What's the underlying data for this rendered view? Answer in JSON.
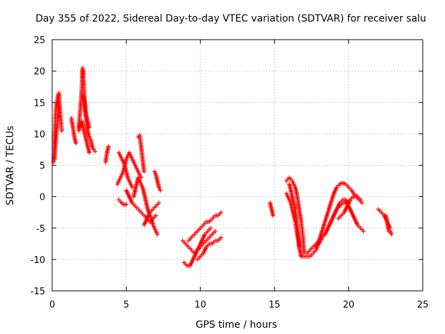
{
  "chart_data": {
    "type": "scatter",
    "title": "Day 355 of 2022, Sidereal Day-to-day VTEC variation (SDTVAR) for receiver salu",
    "xlabel": "GPS time / hours",
    "ylabel": "SDTVAR / TECUs",
    "xlim": [
      0,
      25
    ],
    "ylim": [
      -15,
      25
    ],
    "xticks": [
      0,
      5,
      10,
      15,
      20,
      25
    ],
    "yticks": [
      -15,
      -10,
      -5,
      0,
      5,
      10,
      15,
      20,
      25
    ],
    "grid": true,
    "marker": "+",
    "series": [
      {
        "name": "SDTVAR",
        "color": "#ff0000",
        "segments": [
          {
            "x": [
              0.1,
              0.25,
              0.35,
              0.45,
              0.55,
              0.65
            ],
            "y": [
              5.5,
              14,
              15.5,
              16.5,
              13,
              10.5
            ]
          },
          {
            "x": [
              0.15,
              0.25,
              0.35,
              0.45
            ],
            "y": [
              6,
              9,
              12,
              14.5
            ]
          },
          {
            "x": [
              1.3,
              1.4,
              1.5,
              1.6
            ],
            "y": [
              12.5,
              11,
              9.5,
              8.5
            ]
          },
          {
            "x": [
              1.8,
              1.9,
              2.0,
              2.05,
              2.1,
              2.15,
              2.2,
              2.3,
              2.4,
              2.5,
              2.6,
              2.7,
              2.8,
              2.9
            ],
            "y": [
              11,
              14,
              17,
              20.5,
              20,
              17,
              14,
              12,
              10.5,
              9.5,
              9,
              8,
              7.5,
              7.2
            ]
          },
          {
            "x": [
              1.8,
              1.9,
              2.0,
              2.1,
              2.2,
              2.3,
              2.4,
              2.5
            ],
            "y": [
              10.5,
              11.5,
              12,
              11,
              10,
              9,
              8,
              7
            ]
          },
          {
            "x": [
              2.1,
              2.2,
              2.3,
              2.4,
              2.5
            ],
            "y": [
              16,
              15,
              13,
              12,
              11
            ]
          },
          {
            "x": [
              3.6,
              3.7,
              3.8
            ],
            "y": [
              5.5,
              7,
              8
            ]
          },
          {
            "x": [
              4.4,
              4.5,
              4.6,
              4.7,
              4.8,
              4.9,
              5.0,
              5.1,
              5.2,
              5.3,
              5.4,
              5.5,
              5.6,
              5.7,
              5.8,
              5.9,
              6.0
            ],
            "y": [
              2,
              2.5,
              3,
              3.5,
              4,
              5,
              6,
              6.5,
              7,
              6.5,
              6,
              5.5,
              5,
              4.5,
              4,
              3.5,
              3
            ]
          },
          {
            "x": [
              4.5,
              4.6,
              4.7,
              4.8,
              4.9,
              5.0,
              5.1,
              5.2,
              5.3,
              5.4
            ],
            "y": [
              7,
              6.5,
              6,
              5.5,
              5,
              4,
              3,
              2.5,
              2,
              1.5
            ]
          },
          {
            "x": [
              4.5,
              4.6,
              4.7,
              4.8,
              4.9,
              5.0
            ],
            "y": [
              -0.5,
              -0.8,
              -1,
              -1.2,
              -1.3,
              -1.2
            ]
          },
          {
            "x": [
              5.0,
              5.2,
              5.4,
              5.6,
              5.8,
              6.0,
              6.2,
              6.4,
              6.6,
              6.8,
              7.0
            ],
            "y": [
              1,
              0,
              -1,
              -1.5,
              -2,
              -2.5,
              -3,
              -3.5,
              -4,
              -3.5,
              -3
            ]
          },
          {
            "x": [
              5.5,
              5.6,
              5.7,
              5.8,
              5.9,
              6.0,
              6.1,
              6.2,
              6.3,
              6.4,
              6.5,
              6.6,
              6.7,
              6.8,
              6.9,
              7.0,
              7.1
            ],
            "y": [
              0,
              1,
              2,
              3,
              2.5,
              2,
              1.5,
              0.5,
              -0.5,
              -1.5,
              -2.5,
              -3,
              -3.5,
              -4.5,
              -5,
              -5.5,
              -6
            ]
          },
          {
            "x": [
              5.8,
              5.9,
              6.0,
              6.1,
              6.2
            ],
            "y": [
              9.5,
              9.8,
              8,
              6,
              4
            ]
          },
          {
            "x": [
              6.2,
              6.4,
              6.6,
              6.8,
              7.0,
              7.2
            ],
            "y": [
              -4.5,
              -3.5,
              -2.5,
              -2,
              -1.5,
              -1
            ]
          },
          {
            "x": [
              6.9,
              7.0,
              7.1,
              7.2,
              7.3
            ],
            "y": [
              4,
              3.5,
              2.5,
              1.5,
              1
            ]
          },
          {
            "x": [
              8.8,
              9.0,
              9.2,
              9.4,
              9.6,
              9.8,
              10.0,
              10.2,
              10.4,
              10.6,
              10.8,
              11.0
            ],
            "y": [
              -7,
              -7.5,
              -8,
              -8.5,
              -9,
              -8.5,
              -8,
              -7.5,
              -7,
              -6.5,
              -6,
              -5.5
            ]
          },
          {
            "x": [
              8.9,
              9.1,
              9.3,
              9.5,
              9.7,
              9.9,
              10.1,
              10.3,
              10.5,
              10.7
            ],
            "y": [
              -10.5,
              -11,
              -11,
              -10,
              -9,
              -8,
              -7,
              -6,
              -5.5,
              -5
            ]
          },
          {
            "x": [
              9.2,
              9.4,
              9.6,
              9.8,
              10.0,
              10.2,
              10.4,
              10.6,
              10.8,
              11.0,
              11.2,
              11.4
            ],
            "y": [
              -7,
              -6.5,
              -6,
              -5.5,
              -5,
              -4.5,
              -4,
              -4,
              -3.5,
              -3,
              -3,
              -2.5
            ]
          },
          {
            "x": [
              9.8,
              10.0,
              10.2,
              10.4,
              10.6,
              10.8,
              11.0,
              11.2,
              11.4
            ],
            "y": [
              -10,
              -9.5,
              -9,
              -8,
              -7.5,
              -7.5,
              -7,
              -7,
              -6.5
            ]
          },
          {
            "x": [
              14.7,
              14.8,
              14.9
            ],
            "y": [
              -1,
              -2,
              -3
            ]
          },
          {
            "x": [
              15.8,
              15.9,
              16.0,
              16.1,
              16.2,
              16.3,
              16.4,
              16.5,
              16.6,
              16.7,
              16.8,
              16.9,
              17.0
            ],
            "y": [
              2.5,
              2.8,
              3,
              2.8,
              2.5,
              2,
              1.5,
              0.5,
              -1,
              -2.5,
              -4,
              -6,
              -9
            ]
          },
          {
            "x": [
              15.8,
              15.9,
              16.0,
              16.1,
              16.2,
              16.3,
              16.4,
              16.5,
              16.6,
              16.7,
              16.8
            ],
            "y": [
              0.5,
              0,
              -0.5,
              -1,
              -2,
              -3,
              -4,
              -5.5,
              -7,
              -8.5,
              -9.5
            ]
          },
          {
            "x": [
              16.0,
              16.1,
              16.2,
              16.3,
              16.4,
              16.5,
              16.6,
              16.7
            ],
            "y": [
              2,
              1,
              0,
              -1,
              -2,
              -4,
              -6,
              -8
            ]
          },
          {
            "x": [
              16.8,
              17.0,
              17.2,
              17.4,
              17.6,
              17.8,
              18.0,
              18.2,
              18.4,
              18.6,
              18.8,
              19.0,
              19.2,
              19.4,
              19.6,
              19.8,
              20.0,
              20.2,
              20.4,
              20.6,
              20.8
            ],
            "y": [
              -9.5,
              -9.5,
              -9.5,
              -9.5,
              -9,
              -8.5,
              -7,
              -5.5,
              -4,
              -2.5,
              -1,
              0.5,
              1.5,
              2,
              2.2,
              2,
              1.5,
              1,
              0.3,
              0,
              -0.5
            ]
          },
          {
            "x": [
              17.8,
              18.0,
              18.2,
              18.4,
              18.6,
              18.8,
              19.0,
              19.2,
              19.4,
              19.6,
              19.8,
              20.0,
              20.2,
              20.4,
              20.6,
              20.8,
              21.0
            ],
            "y": [
              -8,
              -7.5,
              -6.5,
              -6,
              -5,
              -4,
              -3,
              -2,
              -1,
              -0.5,
              -0.5,
              -1.5,
              -2.5,
              -3.5,
              -4.5,
              -5,
              -5.5
            ]
          },
          {
            "x": [
              17.2,
              17.4,
              17.6,
              17.8,
              18.0,
              18.2,
              18.4,
              18.6,
              18.8,
              19.0,
              19.2,
              19.4,
              19.6,
              19.8,
              20.0
            ],
            "y": [
              -9,
              -8.5,
              -8,
              -7.5,
              -7,
              -6.5,
              -6,
              -5,
              -4,
              -3,
              -2,
              -1.5,
              -1,
              -1,
              -1
            ]
          },
          {
            "x": [
              19.3,
              19.5,
              19.7,
              19.9,
              20.1,
              20.3,
              20.5,
              20.7,
              20.9
            ],
            "y": [
              -3.5,
              -3,
              -2.5,
              -1.5,
              -0.5,
              0,
              0,
              -0.5,
              -1
            ]
          },
          {
            "x": [
              22.0,
              22.2,
              22.4,
              22.6,
              22.8
            ],
            "y": [
              -2,
              -2.5,
              -3,
              -4,
              -5
            ]
          },
          {
            "x": [
              22.5,
              22.6,
              22.7
            ],
            "y": [
              -3,
              -4,
              -5.5
            ]
          },
          {
            "x": [
              22.8,
              22.9
            ],
            "y": [
              -5.5,
              -6
            ]
          }
        ]
      }
    ]
  }
}
